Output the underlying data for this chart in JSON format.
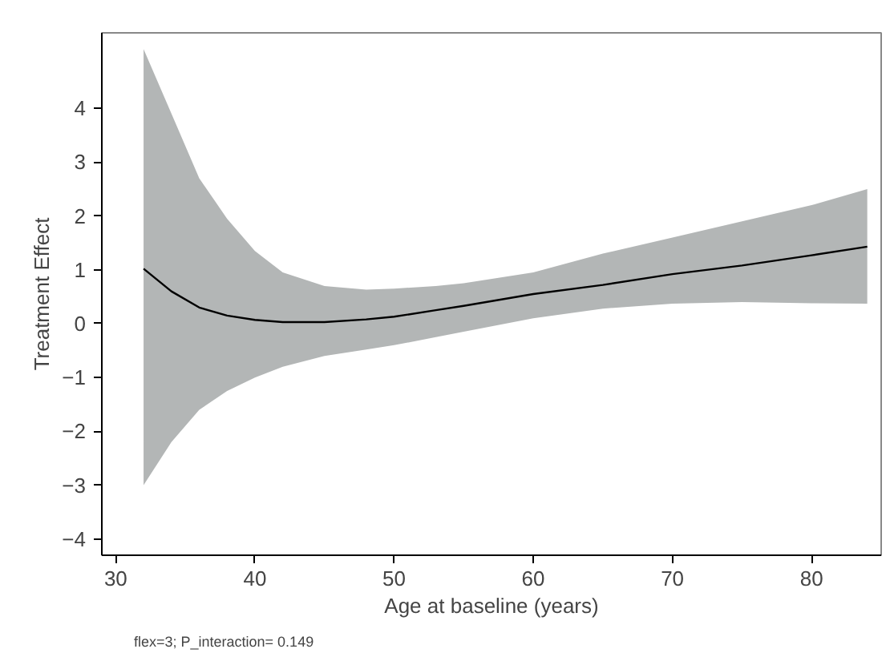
{
  "chart_data": {
    "type": "line",
    "xlabel": "Age at baseline (years)",
    "ylabel": "Treatment Effect",
    "annotations": [
      "flex=3; P_interaction= 0.149"
    ],
    "x": [
      32,
      34,
      36,
      38,
      40,
      42,
      45,
      48,
      50,
      53,
      55,
      60,
      65,
      70,
      75,
      80,
      84
    ],
    "series": [
      {
        "color": "#000000",
        "values": [
          1.02,
          0.6,
          0.3,
          0.15,
          0.07,
          0.03,
          0.03,
          0.08,
          0.13,
          0.25,
          0.33,
          0.55,
          0.72,
          0.92,
          1.08,
          1.27,
          1.43
        ],
        "lower": [
          -3.0,
          -2.2,
          -1.6,
          -1.25,
          -1.0,
          -0.8,
          -0.6,
          -0.48,
          -0.4,
          -0.25,
          -0.15,
          0.1,
          0.28,
          0.37,
          0.4,
          0.38,
          0.37
        ],
        "upper": [
          5.1,
          3.9,
          2.7,
          1.95,
          1.35,
          0.95,
          0.7,
          0.63,
          0.65,
          0.7,
          0.75,
          0.95,
          1.3,
          1.6,
          1.9,
          2.2,
          2.5
        ]
      }
    ],
    "xlim": [
      29,
      85
    ],
    "ylim": [
      -4.3,
      5.4
    ],
    "xticks": [
      30,
      40,
      50,
      60,
      70,
      80
    ],
    "yticks": [
      -4,
      -3,
      -2,
      -1,
      0,
      1,
      2,
      3,
      4
    ],
    "grid": false,
    "line_style": "solid"
  }
}
